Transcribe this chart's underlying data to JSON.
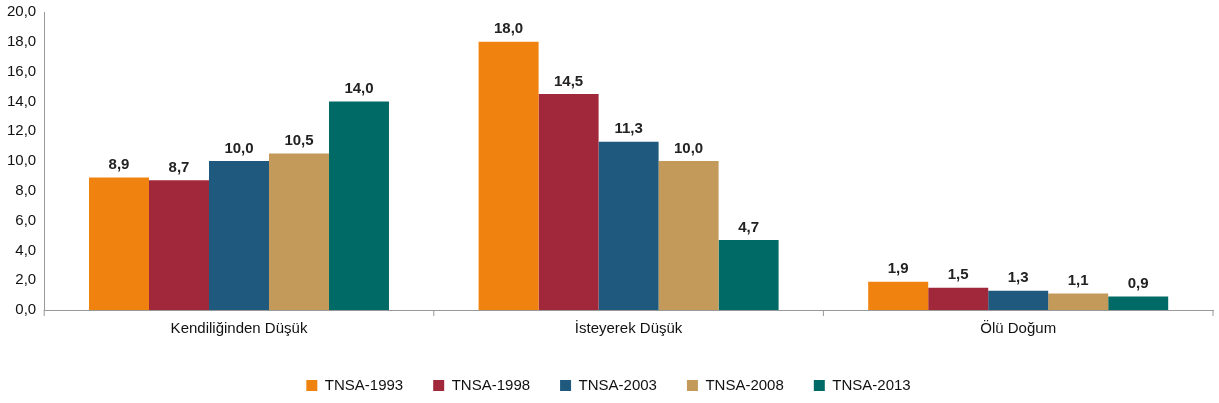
{
  "chart_data": {
    "type": "bar",
    "categories": [
      "Kendiliğinden Düşük",
      "İsteyerek Düşük",
      "Ölü Doğum"
    ],
    "series": [
      {
        "name": "TNSA-1993",
        "color": "#f0820f",
        "values": [
          8.9,
          18.0,
          1.9
        ],
        "value_labels": [
          "8,9",
          "18,0",
          "1,9"
        ]
      },
      {
        "name": "TNSA-1998",
        "color": "#a0283a",
        "values": [
          8.7,
          14.5,
          1.5
        ],
        "value_labels": [
          "8,7",
          "14,5",
          "1,5"
        ]
      },
      {
        "name": "TNSA-2003",
        "color": "#1f5a7e",
        "values": [
          10.0,
          11.3,
          1.3
        ],
        "value_labels": [
          "10,0",
          "11,3",
          "1,3"
        ]
      },
      {
        "name": "TNSA-2008",
        "color": "#c49a5a",
        "values": [
          10.5,
          10.0,
          1.1
        ],
        "value_labels": [
          "10,5",
          "10,0",
          "1,1"
        ]
      },
      {
        "name": "TNSA-2013",
        "color": "#006a66",
        "values": [
          14.0,
          4.7,
          0.9
        ],
        "value_labels": [
          "14,0",
          "4,7",
          "0,9"
        ]
      }
    ],
    "ylim": [
      0,
      20
    ],
    "yticks": [
      {
        "value": 0,
        "label": "0,0"
      },
      {
        "value": 2,
        "label": "2,0"
      },
      {
        "value": 4,
        "label": "4,0"
      },
      {
        "value": 6,
        "label": "6,0"
      },
      {
        "value": 8,
        "label": "8,0"
      },
      {
        "value": 10,
        "label": "10,0"
      },
      {
        "value": 12,
        "label": "12,0"
      },
      {
        "value": 14,
        "label": "14,0"
      },
      {
        "value": 16,
        "label": "16,0"
      },
      {
        "value": 18,
        "label": "18,0"
      },
      {
        "value": 20,
        "label": "20,0"
      }
    ],
    "grid": false,
    "legend": "bottom"
  }
}
